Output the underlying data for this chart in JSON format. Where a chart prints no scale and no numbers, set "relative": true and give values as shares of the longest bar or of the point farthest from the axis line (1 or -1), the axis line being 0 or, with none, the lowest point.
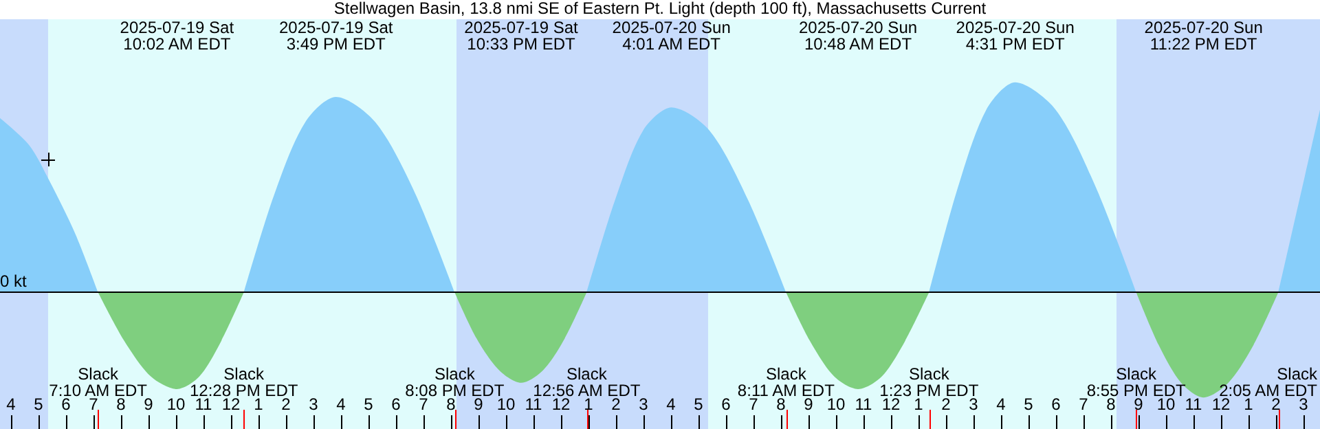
{
  "chart_data": {
    "type": "area",
    "title": "Stellwagen Basin, 13.8 nmi SE of Eastern Pt. Light (depth 100 ft), Massachusetts Current",
    "relative": true,
    "grid": false,
    "xlim": [
      "2025-07-19T03:36",
      "2025-07-21T03:36"
    ],
    "xticks": [
      {
        "value": "2025-07-19T04:00",
        "label": "4"
      },
      {
        "value": "2025-07-19T05:00",
        "label": "5"
      },
      {
        "value": "2025-07-19T06:00",
        "label": "6"
      },
      {
        "value": "2025-07-19T07:00",
        "label": "7"
      },
      {
        "value": "2025-07-19T08:00",
        "label": "8"
      },
      {
        "value": "2025-07-19T09:00",
        "label": "9"
      },
      {
        "value": "2025-07-19T10:00",
        "label": "10"
      },
      {
        "value": "2025-07-19T11:00",
        "label": "11"
      },
      {
        "value": "2025-07-19T12:00",
        "label": "12"
      },
      {
        "value": "2025-07-19T13:00",
        "label": "1"
      },
      {
        "value": "2025-07-19T14:00",
        "label": "2"
      },
      {
        "value": "2025-07-19T15:00",
        "label": "3"
      },
      {
        "value": "2025-07-19T16:00",
        "label": "4"
      },
      {
        "value": "2025-07-19T17:00",
        "label": "5"
      },
      {
        "value": "2025-07-19T18:00",
        "label": "6"
      },
      {
        "value": "2025-07-19T19:00",
        "label": "7"
      },
      {
        "value": "2025-07-19T20:00",
        "label": "8"
      },
      {
        "value": "2025-07-19T21:00",
        "label": "9"
      },
      {
        "value": "2025-07-19T22:00",
        "label": "10"
      },
      {
        "value": "2025-07-19T23:00",
        "label": "11"
      },
      {
        "value": "2025-07-20T00:00",
        "label": "12"
      },
      {
        "value": "2025-07-20T01:00",
        "label": "1"
      },
      {
        "value": "2025-07-20T02:00",
        "label": "2"
      },
      {
        "value": "2025-07-20T03:00",
        "label": "3"
      },
      {
        "value": "2025-07-20T04:00",
        "label": "4"
      },
      {
        "value": "2025-07-20T05:00",
        "label": "5"
      },
      {
        "value": "2025-07-20T06:00",
        "label": "6"
      },
      {
        "value": "2025-07-20T07:00",
        "label": "7"
      },
      {
        "value": "2025-07-20T08:00",
        "label": "8"
      },
      {
        "value": "2025-07-20T09:00",
        "label": "9"
      },
      {
        "value": "2025-07-20T10:00",
        "label": "10"
      },
      {
        "value": "2025-07-20T11:00",
        "label": "11"
      },
      {
        "value": "2025-07-20T12:00",
        "label": "12"
      },
      {
        "value": "2025-07-20T13:00",
        "label": "1"
      },
      {
        "value": "2025-07-20T14:00",
        "label": "2"
      },
      {
        "value": "2025-07-20T15:00",
        "label": "3"
      },
      {
        "value": "2025-07-20T16:00",
        "label": "4"
      },
      {
        "value": "2025-07-20T17:00",
        "label": "5"
      },
      {
        "value": "2025-07-20T18:00",
        "label": "6"
      },
      {
        "value": "2025-07-20T19:00",
        "label": "7"
      },
      {
        "value": "2025-07-20T20:00",
        "label": "8"
      },
      {
        "value": "2025-07-20T21:00",
        "label": "9"
      },
      {
        "value": "2025-07-20T22:00",
        "label": "10"
      },
      {
        "value": "2025-07-20T23:00",
        "label": "11"
      },
      {
        "value": "2025-07-21T00:00",
        "label": "12"
      },
      {
        "value": "2025-07-21T01:00",
        "label": "1"
      },
      {
        "value": "2025-07-21T02:00",
        "label": "2"
      },
      {
        "value": "2025-07-21T03:00",
        "label": "3"
      }
    ],
    "series": [
      {
        "color": "#87cefa",
        "x": [
          "2025-07-19T03:36",
          "2025-07-19T04:40",
          "2025-07-19T05:24",
          "2025-07-19T06:20",
          "2025-07-19T07:10",
          "2025-07-19T10:02",
          "2025-07-19T12:28",
          "2025-07-19T13:35",
          "2025-07-19T14:42",
          "2025-07-19T15:49",
          "2025-07-19T17:15",
          "2025-07-19T18:42",
          "2025-07-19T20:08",
          "2025-07-19T22:33",
          "2025-07-20T00:56",
          "2025-07-20T01:58",
          "2025-07-20T02:59",
          "2025-07-20T04:01",
          "2025-07-20T05:24",
          "2025-07-20T06:48",
          "2025-07-20T08:11",
          "2025-07-20T10:48",
          "2025-07-20T13:23",
          "2025-07-20T14:26",
          "2025-07-20T15:28",
          "2025-07-20T16:31",
          "2025-07-20T17:59",
          "2025-07-20T19:27",
          "2025-07-20T20:55",
          "2025-07-20T23:22",
          "2025-07-21T02:05",
          "2025-07-21T03:36"
        ],
        "values": [
          0.83,
          0.7,
          0.53,
          0.28,
          0,
          null,
          0,
          0.47,
          0.81,
          0.93,
          0.81,
          0.47,
          0,
          null,
          0,
          0.44,
          0.77,
          0.88,
          0.77,
          0.44,
          0,
          null,
          0,
          0.5,
          0.87,
          1,
          0.87,
          0.5,
          0,
          null,
          0,
          0.87
        ]
      },
      {
        "color": "#7fcf7f",
        "x": [
          "2025-07-19T07:10",
          "2025-07-19T08:07",
          "2025-07-19T09:05",
          "2025-07-19T10:02",
          "2025-07-19T10:51",
          "2025-07-19T11:39",
          "2025-07-19T12:28",
          "2025-07-19T15:49",
          "2025-07-19T20:08",
          "2025-07-19T20:56",
          "2025-07-19T21:45",
          "2025-07-19T22:33",
          "2025-07-19T23:21",
          "2025-07-20T00:08",
          "2025-07-20T00:56",
          "2025-07-20T04:01",
          "2025-07-20T08:11",
          "2025-07-20T09:03",
          "2025-07-20T09:56",
          "2025-07-20T10:48",
          "2025-07-20T11:40",
          "2025-07-20T12:31",
          "2025-07-20T13:23",
          "2025-07-20T16:31",
          "2025-07-20T20:55",
          "2025-07-20T21:44",
          "2025-07-20T22:33",
          "2025-07-20T23:22",
          "2025-07-21T00:16",
          "2025-07-21T01:11",
          "2025-07-21T02:05"
        ],
        "values": [
          0,
          -0.23,
          -0.4,
          -0.46,
          -0.4,
          -0.23,
          0,
          null,
          0,
          -0.22,
          -0.37,
          -0.43,
          -0.37,
          -0.22,
          0,
          null,
          0,
          -0.23,
          -0.4,
          -0.46,
          -0.4,
          -0.23,
          0,
          null,
          0,
          -0.25,
          -0.43,
          -0.5,
          -0.43,
          -0.25,
          0
        ]
      }
    ],
    "ref_lines": [
      {
        "axis": "y",
        "value": 0,
        "label": "0 kt",
        "color": "#000000"
      },
      {
        "axis": "x",
        "value": "2025-07-19T07:10",
        "label": "Slack\n7:10 AM EDT",
        "color": "#ff0000"
      },
      {
        "axis": "x",
        "value": "2025-07-19T12:28",
        "label": "Slack\n12:28 PM EDT",
        "color": "#ff0000"
      },
      {
        "axis": "x",
        "value": "2025-07-19T20:08",
        "label": "Slack\n8:08 PM EDT",
        "color": "#ff0000"
      },
      {
        "axis": "x",
        "value": "2025-07-20T00:56",
        "label": "Slack\n12:56 AM EDT",
        "color": "#ff0000"
      },
      {
        "axis": "x",
        "value": "2025-07-20T08:11",
        "label": "Slack\n8:11 AM EDT",
        "color": "#ff0000"
      },
      {
        "axis": "x",
        "value": "2025-07-20T13:23",
        "label": "Slack\n1:23 PM EDT",
        "color": "#ff0000"
      },
      {
        "axis": "x",
        "value": "2025-07-20T20:55",
        "label": "Slack\n8:55 PM EDT",
        "color": "#ff0000"
      },
      {
        "axis": "x",
        "value": "2025-07-21T02:05",
        "label": "Slack\n2:05 AM EDT",
        "color": "#ff0000"
      }
    ],
    "bands": [
      {
        "axis": "x",
        "from": "2025-07-19T03:36",
        "to": "2025-07-19T05:21",
        "color": "#c8dcfc"
      },
      {
        "axis": "x",
        "from": "2025-07-19T05:21",
        "to": "2025-07-19T20:12",
        "color": "#e0fcfc"
      },
      {
        "axis": "x",
        "from": "2025-07-19T20:12",
        "to": "2025-07-20T05:21",
        "color": "#c8dcfc"
      },
      {
        "axis": "x",
        "from": "2025-07-20T05:21",
        "to": "2025-07-20T20:12",
        "color": "#e0fcfc"
      },
      {
        "axis": "x",
        "from": "2025-07-20T20:12",
        "to": "2025-07-21T03:36",
        "color": "#c8dcfc"
      }
    ],
    "annotations": [
      "2025-07-19 Sat\n10:02 AM EDT",
      "2025-07-19 Sat\n3:49 PM EDT",
      "2025-07-19 Sat\n10:33 PM EDT",
      "2025-07-20 Sun\n4:01 AM EDT",
      "2025-07-20 Sun\n10:48 AM EDT",
      "2025-07-20 Sun\n4:31 PM EDT",
      "2025-07-20 Sun\n11:22 PM EDT"
    ]
  }
}
